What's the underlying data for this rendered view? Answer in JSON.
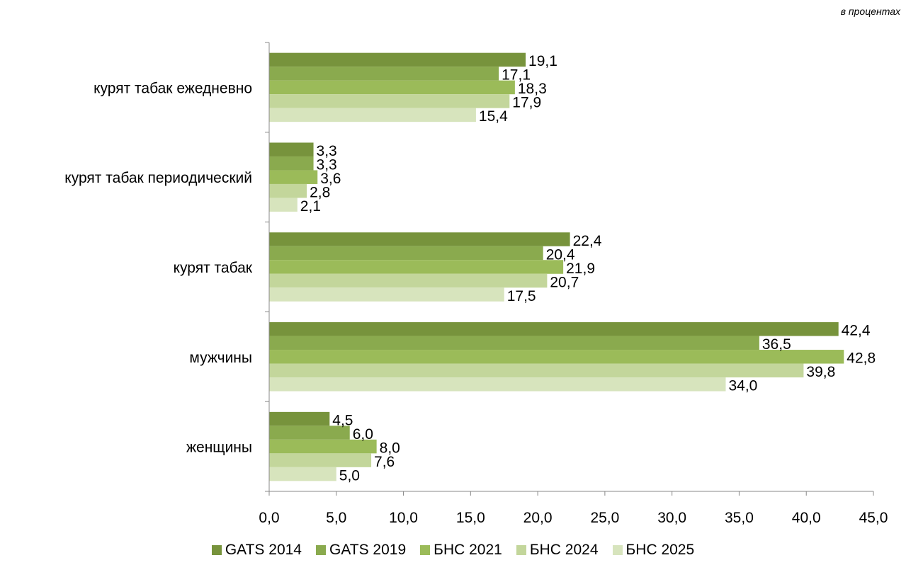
{
  "unit_note": "в процентах",
  "chart_data": {
    "type": "bar",
    "orientation": "horizontal",
    "categories": [
      "курят табак ежедневно",
      "курят табак периодический",
      "курят табак",
      "мужчины",
      "женщины"
    ],
    "series": [
      {
        "name": "GATS 2014",
        "color": "#77933c",
        "values": [
          19.1,
          3.3,
          22.4,
          42.4,
          4.5
        ],
        "labels": [
          "19,1",
          "3,3",
          "22,4",
          "42,4",
          "4,5"
        ]
      },
      {
        "name": "GATS 2019",
        "color": "#8aaa4e",
        "values": [
          17.1,
          3.3,
          20.4,
          36.5,
          6.0
        ],
        "labels": [
          "17,1",
          "3,3",
          "20,4",
          "36,5",
          "6,0"
        ]
      },
      {
        "name": "БНС 2021",
        "color": "#9bbb59",
        "values": [
          18.3,
          3.6,
          21.9,
          42.8,
          8.0
        ],
        "labels": [
          "18,3",
          "3,6",
          "21,9",
          "42,8",
          "8,0"
        ]
      },
      {
        "name": "БНС 2024",
        "color": "#c3d69b",
        "values": [
          17.9,
          2.8,
          20.7,
          39.8,
          7.6
        ],
        "labels": [
          "17,9",
          "2,8",
          "20,7",
          "39,8",
          "7,6"
        ]
      },
      {
        "name": "БНС 2025",
        "color": "#d7e4bd",
        "values": [
          15.4,
          2.1,
          17.5,
          34.0,
          5.0
        ],
        "labels": [
          "15,4",
          "2,1",
          "17,5",
          "34,0",
          "5,0"
        ]
      }
    ],
    "xlim": [
      0,
      45
    ],
    "xticks": [
      "0,0",
      "5,0",
      "10,0",
      "15,0",
      "20,0",
      "25,0",
      "30,0",
      "35,0",
      "40,0",
      "45,0"
    ],
    "grid": false,
    "legend_position": "bottom"
  }
}
